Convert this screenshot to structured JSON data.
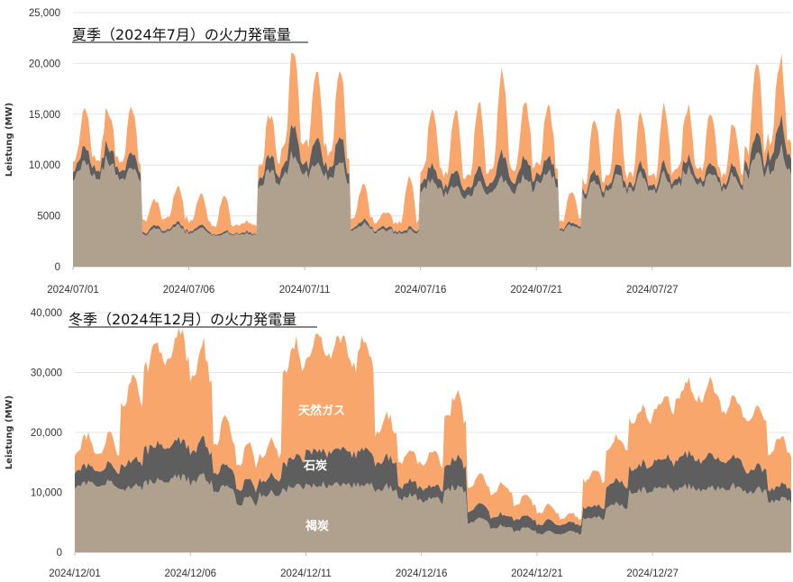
{
  "colors": {
    "lignite": "#b0a08e",
    "coal": "#5e5e5e",
    "gas": "#f9a66d",
    "grid": "#e4e4e4",
    "axis": "#bdbdbd"
  },
  "chart_data": [
    {
      "type": "area",
      "stacked": true,
      "title": "夏季（2024年7月）の火力発電量",
      "ylabel": "Leistung (MW)",
      "ylim": [
        0,
        25000
      ],
      "y_ticks": [
        "0",
        "5000",
        "10,000",
        "15,000",
        "20,000",
        "25,000"
      ],
      "y_tick_values": [
        0,
        5000,
        10000,
        15000,
        20000,
        25000
      ],
      "x_tick_labels": [
        "2024/07/01",
        "2024/07/06",
        "2024/07/11",
        "2024/07/16",
        "2024/07/21",
        "2024/07/27"
      ],
      "x_tick_days": [
        0,
        5,
        10,
        15,
        20,
        25
      ],
      "days": 31,
      "daily_peaks": [
        {
          "day": 0,
          "peak": [
            16000,
            14500,
            15500,
            14500,
            17000
          ]
        },
        {
          "day": 3,
          "peak": [
            6200,
            7000,
            8000,
            8500,
            7500
          ]
        }
      ],
      "series": [
        {
          "name": "褐炭",
          "days": [
            10500,
            10500,
            10000,
            3800,
            4000,
            3800,
            3300,
            3300,
            9500,
            11000,
            10500,
            10500,
            4200,
            3600,
            3500,
            8500,
            8000,
            8000,
            8500,
            9000,
            9500,
            4000,
            8500,
            9000,
            9000,
            9000,
            9500,
            9500,
            9000,
            11000,
            11500
          ],
          "nights": [
            9000,
            9000,
            8500,
            3200,
            3400,
            3200,
            3100,
            3100,
            8000,
            9000,
            9000,
            8500,
            3600,
            3400,
            3300,
            7500,
            7000,
            7000,
            7500,
            7500,
            8000,
            3600,
            7000,
            7500,
            7500,
            7500,
            8000,
            8000,
            7500,
            9000,
            9500
          ]
        },
        {
          "name": "石炭",
          "days": [
            1500,
            1500,
            1500,
            300,
            300,
            300,
            200,
            200,
            1500,
            3000,
            2500,
            2500,
            400,
            300,
            300,
            1500,
            1500,
            1500,
            2500,
            2000,
            1500,
            300,
            1000,
            1000,
            1000,
            1000,
            1200,
            1000,
            1000,
            2000,
            3000
          ],
          "nights": [
            800,
            800,
            800,
            200,
            200,
            200,
            100,
            100,
            800,
            1000,
            1000,
            1000,
            200,
            200,
            200,
            800,
            800,
            800,
            1000,
            1000,
            800,
            200,
            500,
            500,
            500,
            500,
            600,
            500,
            500,
            1000,
            1500
          ]
        },
        {
          "name": "天然ガス",
          "days": [
            3800,
            3500,
            4500,
            2500,
            3500,
            3000,
            3500,
            1000,
            4000,
            7500,
            6500,
            6500,
            3500,
            1500,
            5000,
            5500,
            6000,
            6500,
            8000,
            5500,
            5000,
            3000,
            5000,
            5500,
            5000,
            5500,
            5000,
            5000,
            4000,
            7000,
            6000
          ],
          "nights": [
            1000,
            1000,
            900,
            1200,
            1200,
            1000,
            800,
            800,
            1300,
            2000,
            2000,
            1500,
            1000,
            800,
            900,
            1200,
            1200,
            1200,
            1300,
            1300,
            1000,
            800,
            1000,
            1000,
            1000,
            1000,
            1000,
            1000,
            1000,
            1500,
            1500
          ]
        }
      ]
    },
    {
      "type": "area",
      "stacked": true,
      "title": "冬季（2024年12月）の火力発電量",
      "ylabel": "Leistung (MW)",
      "ylim": [
        0,
        40000
      ],
      "y_ticks": [
        "0",
        "10,000",
        "20,000",
        "30,000",
        "40,000"
      ],
      "y_tick_values": [
        0,
        10000,
        20000,
        30000,
        40000
      ],
      "x_tick_labels": [
        "2024/12/01",
        "2024/12/06",
        "2024/12/11",
        "2024/12/16",
        "2024/12/21",
        "2024/12/27"
      ],
      "x_tick_days": [
        0,
        5,
        10,
        15,
        20,
        25
      ],
      "days": 31,
      "area_labels": [
        "天然ガス",
        "石炭",
        "褐炭"
      ],
      "series": [
        {
          "name": "褐炭",
          "days": [
            11500,
            11500,
            11000,
            12000,
            12500,
            12500,
            11000,
            9000,
            10000,
            11000,
            11500,
            11500,
            11500,
            11000,
            9500,
            9000,
            11000,
            5500,
            4500,
            4000,
            3500,
            3500,
            6000,
            8000,
            10500,
            10800,
            11000,
            11000,
            11000,
            10500,
            9000
          ],
          "nights": [
            11000,
            11000,
            10500,
            11500,
            12000,
            11500,
            10000,
            8000,
            9500,
            10500,
            11000,
            11000,
            11000,
            10500,
            9000,
            8500,
            10500,
            5000,
            4000,
            3500,
            3000,
            3000,
            5500,
            7500,
            10000,
            10500,
            10500,
            10500,
            10500,
            10000,
            8500
          ]
        },
        {
          "name": "石炭",
          "days": [
            3000,
            3000,
            4500,
            6000,
            6000,
            6000,
            3500,
            3000,
            3000,
            5000,
            6000,
            6000,
            6000,
            5000,
            2500,
            2000,
            5000,
            2500,
            2000,
            2000,
            2000,
            1500,
            2000,
            4000,
            4500,
            5000,
            5500,
            5500,
            5000,
            4000,
            2500
          ],
          "nights": [
            2500,
            2500,
            4000,
            5500,
            5500,
            5000,
            3000,
            2500,
            2500,
            4500,
            5500,
            5500,
            5000,
            4500,
            2000,
            2000,
            4000,
            2000,
            1800,
            1800,
            1500,
            1500,
            1800,
            3500,
            4000,
            4500,
            5000,
            5000,
            4500,
            3500,
            2000
          ]
        },
        {
          "name": "天然ガス",
          "days": [
            5000,
            5000,
            14000,
            17000,
            18000,
            16000,
            8000,
            6000,
            6000,
            19000,
            19000,
            19000,
            18000,
            7000,
            5000,
            6000,
            11000,
            5000,
            5000,
            3500,
            2500,
            1500,
            6000,
            7000,
            9000,
            10000,
            12000,
            12000,
            10000,
            10000,
            8000
          ],
          "nights": [
            3000,
            3000,
            10000,
            14000,
            15000,
            12000,
            5000,
            4000,
            4000,
            15000,
            16000,
            16000,
            15000,
            5000,
            4000,
            4000,
            8000,
            4000,
            4000,
            2500,
            2000,
            1000,
            4500,
            6000,
            7500,
            8500,
            10000,
            10000,
            8500,
            8500,
            6000
          ]
        }
      ]
    }
  ]
}
